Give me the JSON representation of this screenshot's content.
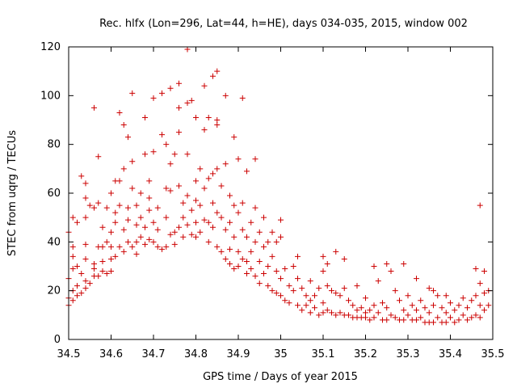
{
  "chart_data": {
    "type": "scatter",
    "title": "Rec. hlfx (Lon=296, Lat=44, h=HE), days 034-035, 2015, window 002",
    "xlabel": "GPS time / Days of year 2015",
    "ylabel": "STEC from uqrg / TECUs",
    "xlim": [
      34.5,
      35.5
    ],
    "ylim": [
      0,
      120
    ],
    "xticks": [
      "34.5",
      "34.6",
      "34.7",
      "34.8",
      "34.9",
      "35",
      "35.1",
      "35.2",
      "35.3",
      "35.4",
      "35.5"
    ],
    "yticks": [
      "0",
      "20",
      "40",
      "60",
      "80",
      "100",
      "120"
    ],
    "grid": false,
    "marker": "plus",
    "color": "#cc0000",
    "points": [
      [
        34.5,
        14
      ],
      [
        34.5,
        17
      ],
      [
        34.5,
        25
      ],
      [
        34.5,
        44
      ],
      [
        34.51,
        16
      ],
      [
        34.51,
        20
      ],
      [
        34.51,
        29
      ],
      [
        34.51,
        34
      ],
      [
        34.51,
        38
      ],
      [
        34.51,
        50
      ],
      [
        34.52,
        18
      ],
      [
        34.52,
        22
      ],
      [
        34.52,
        30
      ],
      [
        34.52,
        48
      ],
      [
        34.53,
        67
      ],
      [
        34.53,
        19
      ],
      [
        34.53,
        27
      ],
      [
        34.54,
        21
      ],
      [
        34.54,
        24
      ],
      [
        34.54,
        33
      ],
      [
        34.54,
        39
      ],
      [
        34.54,
        50
      ],
      [
        34.54,
        58
      ],
      [
        34.54,
        64
      ],
      [
        34.55,
        55
      ],
      [
        34.55,
        23
      ],
      [
        34.56,
        95
      ],
      [
        34.56,
        26
      ],
      [
        34.56,
        29
      ],
      [
        34.56,
        31
      ],
      [
        34.56,
        54
      ],
      [
        34.57,
        75
      ],
      [
        34.57,
        38
      ],
      [
        34.57,
        26
      ],
      [
        34.57,
        56
      ],
      [
        34.58,
        28
      ],
      [
        34.58,
        32
      ],
      [
        34.58,
        38
      ],
      [
        34.58,
        46
      ],
      [
        34.59,
        27
      ],
      [
        34.59,
        40
      ],
      [
        34.59,
        54
      ],
      [
        34.6,
        60
      ],
      [
        34.6,
        38
      ],
      [
        34.6,
        33
      ],
      [
        34.6,
        28
      ],
      [
        34.6,
        44
      ],
      [
        34.61,
        65
      ],
      [
        34.61,
        52
      ],
      [
        34.61,
        48
      ],
      [
        34.61,
        34
      ],
      [
        34.62,
        93
      ],
      [
        34.62,
        38
      ],
      [
        34.62,
        55
      ],
      [
        34.62,
        65
      ],
      [
        34.63,
        88
      ],
      [
        34.63,
        70
      ],
      [
        34.63,
        36
      ],
      [
        34.63,
        45
      ],
      [
        34.64,
        83
      ],
      [
        34.64,
        54
      ],
      [
        34.64,
        40
      ],
      [
        34.64,
        49
      ],
      [
        34.65,
        101
      ],
      [
        34.65,
        73
      ],
      [
        34.65,
        62
      ],
      [
        34.65,
        38
      ],
      [
        34.66,
        40
      ],
      [
        34.66,
        47
      ],
      [
        34.66,
        55
      ],
      [
        34.66,
        35
      ],
      [
        34.67,
        60
      ],
      [
        34.67,
        42
      ],
      [
        34.67,
        50
      ],
      [
        34.68,
        91
      ],
      [
        34.68,
        76
      ],
      [
        34.68,
        39
      ],
      [
        34.68,
        46
      ],
      [
        34.69,
        65
      ],
      [
        34.69,
        58
      ],
      [
        34.69,
        53
      ],
      [
        34.69,
        41
      ],
      [
        34.7,
        77
      ],
      [
        34.7,
        99
      ],
      [
        34.7,
        40
      ],
      [
        34.7,
        48
      ],
      [
        34.71,
        38
      ],
      [
        34.71,
        45
      ],
      [
        34.71,
        54
      ],
      [
        34.72,
        84
      ],
      [
        34.72,
        101
      ],
      [
        34.72,
        37
      ],
      [
        34.73,
        62
      ],
      [
        34.73,
        80
      ],
      [
        34.73,
        38
      ],
      [
        34.73,
        50
      ],
      [
        34.74,
        103
      ],
      [
        34.74,
        72
      ],
      [
        34.74,
        61
      ],
      [
        34.74,
        43
      ],
      [
        34.75,
        76
      ],
      [
        34.75,
        44
      ],
      [
        34.75,
        39
      ],
      [
        34.76,
        105
      ],
      [
        34.76,
        95
      ],
      [
        34.76,
        85
      ],
      [
        34.76,
        63
      ],
      [
        34.76,
        46
      ],
      [
        34.77,
        56
      ],
      [
        34.77,
        42
      ],
      [
        34.77,
        50
      ],
      [
        34.78,
        119
      ],
      [
        34.78,
        97
      ],
      [
        34.78,
        76
      ],
      [
        34.78,
        59
      ],
      [
        34.78,
        47
      ],
      [
        34.79,
        98
      ],
      [
        34.79,
        53
      ],
      [
        34.79,
        43
      ],
      [
        34.8,
        91
      ],
      [
        34.8,
        65
      ],
      [
        34.8,
        57
      ],
      [
        34.8,
        48
      ],
      [
        34.8,
        42
      ],
      [
        34.81,
        70
      ],
      [
        34.81,
        55
      ],
      [
        34.81,
        44
      ],
      [
        34.82,
        104
      ],
      [
        34.82,
        86
      ],
      [
        34.82,
        62
      ],
      [
        34.82,
        49
      ],
      [
        34.83,
        91
      ],
      [
        34.83,
        66
      ],
      [
        34.83,
        48
      ],
      [
        34.83,
        40
      ],
      [
        34.84,
        108
      ],
      [
        34.84,
        68
      ],
      [
        34.84,
        56
      ],
      [
        34.84,
        46
      ],
      [
        34.85,
        110
      ],
      [
        34.85,
        90
      ],
      [
        34.85,
        88
      ],
      [
        34.85,
        70
      ],
      [
        34.85,
        52
      ],
      [
        34.85,
        38
      ],
      [
        34.86,
        63
      ],
      [
        34.86,
        50
      ],
      [
        34.86,
        36
      ],
      [
        34.87,
        100
      ],
      [
        34.87,
        72
      ],
      [
        34.87,
        45
      ],
      [
        34.87,
        33
      ],
      [
        34.88,
        59
      ],
      [
        34.88,
        48
      ],
      [
        34.88,
        37
      ],
      [
        34.88,
        31
      ],
      [
        34.89,
        83
      ],
      [
        34.89,
        55
      ],
      [
        34.89,
        42
      ],
      [
        34.89,
        29
      ],
      [
        34.9,
        74
      ],
      [
        34.9,
        52
      ],
      [
        34.9,
        36
      ],
      [
        34.9,
        30
      ],
      [
        34.91,
        99
      ],
      [
        34.91,
        56
      ],
      [
        34.91,
        45
      ],
      [
        34.91,
        33
      ],
      [
        34.92,
        69
      ],
      [
        34.92,
        42
      ],
      [
        34.92,
        32
      ],
      [
        34.92,
        27
      ],
      [
        34.93,
        48
      ],
      [
        34.93,
        36
      ],
      [
        34.93,
        29
      ],
      [
        34.94,
        74
      ],
      [
        34.94,
        54
      ],
      [
        34.94,
        26
      ],
      [
        34.94,
        40
      ],
      [
        34.95,
        44
      ],
      [
        34.95,
        32
      ],
      [
        34.95,
        23
      ],
      [
        34.96,
        50
      ],
      [
        34.96,
        38
      ],
      [
        34.96,
        27
      ],
      [
        34.97,
        40
      ],
      [
        34.97,
        30
      ],
      [
        34.97,
        22
      ],
      [
        34.98,
        44
      ],
      [
        34.98,
        34
      ],
      [
        34.98,
        20
      ],
      [
        34.99,
        40
      ],
      [
        34.99,
        28
      ],
      [
        34.99,
        19
      ],
      [
        35.0,
        49
      ],
      [
        35.0,
        42
      ],
      [
        35.0,
        25
      ],
      [
        35.0,
        18
      ],
      [
        35.01,
        29
      ],
      [
        35.01,
        16
      ],
      [
        35.02,
        22
      ],
      [
        35.02,
        15
      ],
      [
        35.03,
        30
      ],
      [
        35.03,
        20
      ],
      [
        35.04,
        34
      ],
      [
        35.04,
        25
      ],
      [
        35.04,
        14
      ],
      [
        35.05,
        21
      ],
      [
        35.05,
        12
      ],
      [
        35.06,
        18
      ],
      [
        35.06,
        14
      ],
      [
        35.07,
        24
      ],
      [
        35.07,
        16
      ],
      [
        35.07,
        11
      ],
      [
        35.08,
        18
      ],
      [
        35.08,
        13
      ],
      [
        35.09,
        21
      ],
      [
        35.09,
        10
      ],
      [
        35.1,
        34
      ],
      [
        35.1,
        28
      ],
      [
        35.1,
        15
      ],
      [
        35.1,
        11
      ],
      [
        35.11,
        31
      ],
      [
        35.11,
        22
      ],
      [
        35.11,
        12
      ],
      [
        35.12,
        20
      ],
      [
        35.12,
        11
      ],
      [
        35.13,
        36
      ],
      [
        35.13,
        19
      ],
      [
        35.13,
        10
      ],
      [
        35.14,
        18
      ],
      [
        35.14,
        11
      ],
      [
        35.15,
        33
      ],
      [
        35.15,
        21
      ],
      [
        35.15,
        10
      ],
      [
        35.16,
        16
      ],
      [
        35.16,
        10
      ],
      [
        35.17,
        14
      ],
      [
        35.17,
        9
      ],
      [
        35.18,
        22
      ],
      [
        35.18,
        12
      ],
      [
        35.18,
        9
      ],
      [
        35.19,
        13
      ],
      [
        35.19,
        9
      ],
      [
        35.2,
        17
      ],
      [
        35.2,
        11
      ],
      [
        35.2,
        9
      ],
      [
        35.21,
        12
      ],
      [
        35.21,
        8
      ],
      [
        35.22,
        30
      ],
      [
        35.22,
        14
      ],
      [
        35.22,
        9
      ],
      [
        35.23,
        24
      ],
      [
        35.23,
        11
      ],
      [
        35.24,
        15
      ],
      [
        35.24,
        8
      ],
      [
        35.25,
        31
      ],
      [
        35.25,
        13
      ],
      [
        35.25,
        8
      ],
      [
        35.26,
        28
      ],
      [
        35.26,
        10
      ],
      [
        35.27,
        20
      ],
      [
        35.27,
        9
      ],
      [
        35.28,
        16
      ],
      [
        35.28,
        8
      ],
      [
        35.29,
        31
      ],
      [
        35.29,
        12
      ],
      [
        35.29,
        8
      ],
      [
        35.3,
        18
      ],
      [
        35.3,
        10
      ],
      [
        35.31,
        14
      ],
      [
        35.31,
        8
      ],
      [
        35.32,
        25
      ],
      [
        35.32,
        12
      ],
      [
        35.32,
        8
      ],
      [
        35.33,
        16
      ],
      [
        35.33,
        9
      ],
      [
        35.34,
        13
      ],
      [
        35.34,
        7
      ],
      [
        35.35,
        21
      ],
      [
        35.35,
        11
      ],
      [
        35.35,
        7
      ],
      [
        35.36,
        20
      ],
      [
        35.36,
        14
      ],
      [
        35.36,
        7
      ],
      [
        35.37,
        18
      ],
      [
        35.37,
        9
      ],
      [
        35.38,
        13
      ],
      [
        35.38,
        7
      ],
      [
        35.39,
        18
      ],
      [
        35.39,
        11
      ],
      [
        35.39,
        7
      ],
      [
        35.4,
        15
      ],
      [
        35.4,
        9
      ],
      [
        35.41,
        12
      ],
      [
        35.41,
        7
      ],
      [
        35.42,
        14
      ],
      [
        35.42,
        8
      ],
      [
        35.43,
        17
      ],
      [
        35.43,
        10
      ],
      [
        35.44,
        13
      ],
      [
        35.44,
        8
      ],
      [
        35.45,
        16
      ],
      [
        35.45,
        9
      ],
      [
        35.46,
        29
      ],
      [
        35.46,
        18
      ],
      [
        35.46,
        10
      ],
      [
        35.47,
        55
      ],
      [
        35.47,
        23
      ],
      [
        35.47,
        14
      ],
      [
        35.47,
        9
      ],
      [
        35.48,
        28
      ],
      [
        35.48,
        19
      ],
      [
        35.48,
        12
      ],
      [
        35.49,
        20
      ],
      [
        35.49,
        14
      ]
    ]
  }
}
